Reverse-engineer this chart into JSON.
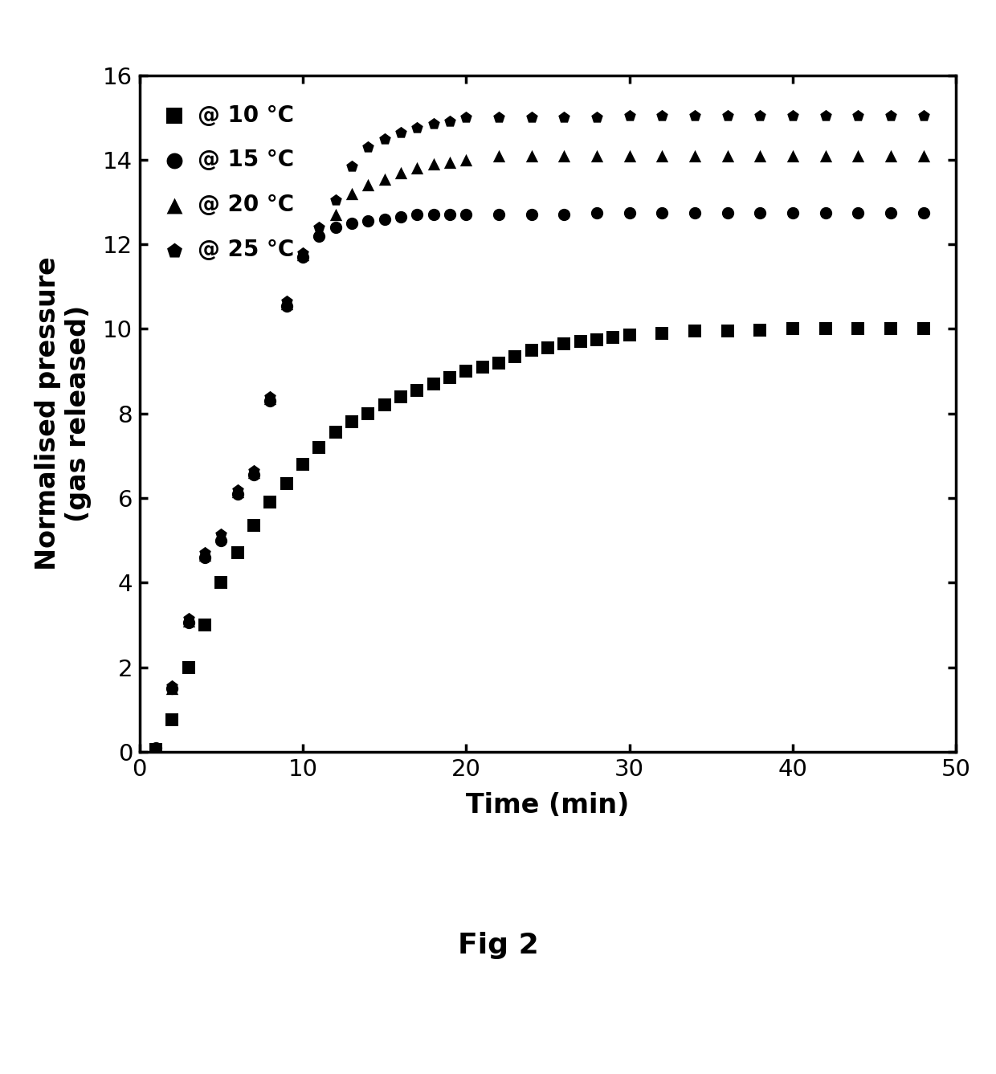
{
  "title": "",
  "xlabel": "Time (min)",
  "ylabel": "Normalised pressure\n(gas released)",
  "xlim": [
    0,
    50
  ],
  "ylim": [
    0,
    16
  ],
  "xticks": [
    0,
    10,
    20,
    30,
    40,
    50
  ],
  "yticks": [
    0,
    2,
    4,
    6,
    8,
    10,
    12,
    14,
    16
  ],
  "fig_caption": "Fig 2",
  "series": [
    {
      "label": "@ 10 °C",
      "marker": "s",
      "color": "black",
      "x": [
        1,
        2,
        3,
        4,
        5,
        6,
        7,
        8,
        9,
        10,
        11,
        12,
        13,
        14,
        15,
        16,
        17,
        18,
        19,
        20,
        21,
        22,
        23,
        24,
        25,
        26,
        27,
        28,
        29,
        30,
        32,
        34,
        36,
        38,
        40,
        42,
        44,
        46,
        48
      ],
      "y": [
        0.05,
        0.75,
        2.0,
        3.0,
        4.0,
        4.7,
        5.35,
        5.9,
        6.35,
        6.8,
        7.2,
        7.55,
        7.8,
        8.0,
        8.2,
        8.4,
        8.55,
        8.7,
        8.85,
        9.0,
        9.1,
        9.2,
        9.35,
        9.5,
        9.55,
        9.65,
        9.7,
        9.75,
        9.8,
        9.85,
        9.9,
        9.95,
        9.95,
        9.98,
        10.0,
        10.0,
        10.0,
        10.0,
        10.0
      ]
    },
    {
      "label": "@ 15 °C",
      "marker": "o",
      "color": "black",
      "x": [
        1,
        2,
        3,
        4,
        5,
        6,
        7,
        8,
        9,
        10,
        11,
        12,
        13,
        14,
        15,
        16,
        17,
        18,
        19,
        20,
        22,
        24,
        26,
        28,
        30,
        32,
        34,
        36,
        38,
        40,
        42,
        44,
        46,
        48
      ],
      "y": [
        0.1,
        1.5,
        3.05,
        4.6,
        5.0,
        6.1,
        6.55,
        8.3,
        10.55,
        11.7,
        12.2,
        12.4,
        12.5,
        12.55,
        12.6,
        12.65,
        12.7,
        12.7,
        12.7,
        12.7,
        12.7,
        12.7,
        12.7,
        12.75,
        12.75,
        12.75,
        12.75,
        12.75,
        12.75,
        12.75,
        12.75,
        12.75,
        12.75,
        12.75
      ]
    },
    {
      "label": "@ 20 °C",
      "marker": "^",
      "color": "black",
      "x": [
        1,
        2,
        3,
        4,
        5,
        6,
        7,
        8,
        9,
        10,
        11,
        12,
        13,
        14,
        15,
        16,
        17,
        18,
        19,
        20,
        22,
        24,
        26,
        28,
        30,
        32,
        34,
        36,
        38,
        40,
        42,
        44,
        46,
        48
      ],
      "y": [
        0.1,
        1.5,
        3.1,
        4.65,
        5.1,
        6.15,
        6.6,
        8.35,
        10.6,
        11.75,
        12.3,
        12.7,
        13.2,
        13.4,
        13.55,
        13.7,
        13.8,
        13.9,
        13.95,
        14.0,
        14.1,
        14.1,
        14.1,
        14.1,
        14.1,
        14.1,
        14.1,
        14.1,
        14.1,
        14.1,
        14.1,
        14.1,
        14.1,
        14.1
      ]
    },
    {
      "label": "@ 25 °C",
      "marker": "p",
      "color": "black",
      "x": [
        1,
        2,
        3,
        4,
        5,
        6,
        7,
        8,
        9,
        10,
        11,
        12,
        13,
        14,
        15,
        16,
        17,
        18,
        19,
        20,
        22,
        24,
        26,
        28,
        30,
        32,
        34,
        36,
        38,
        40,
        42,
        44,
        46,
        48
      ],
      "y": [
        0.1,
        1.55,
        3.15,
        4.7,
        5.15,
        6.2,
        6.65,
        8.4,
        10.65,
        11.8,
        12.4,
        13.05,
        13.85,
        14.3,
        14.5,
        14.65,
        14.75,
        14.85,
        14.9,
        15.0,
        15.0,
        15.0,
        15.0,
        15.0,
        15.05,
        15.05,
        15.05,
        15.05,
        15.05,
        15.05,
        15.05,
        15.05,
        15.05,
        15.05
      ]
    }
  ],
  "background_color": "#ffffff",
  "marker_size": 11,
  "legend_fontsize": 20,
  "axis_fontsize": 24,
  "tick_fontsize": 21
}
